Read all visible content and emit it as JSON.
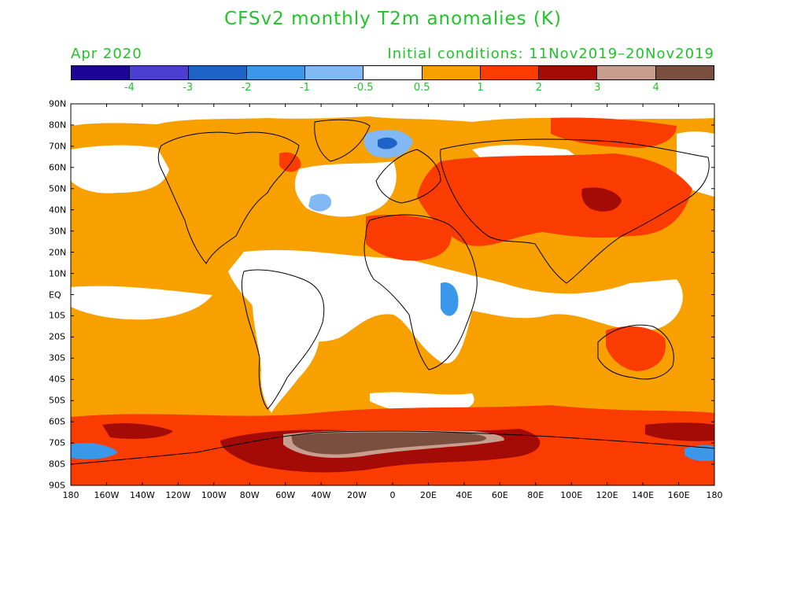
{
  "title": "CFSv2 monthly T2m anomalies (K)",
  "month": "Apr 2020",
  "initial_conditions": "Initial conditions: 11Nov2019–20Nov2019",
  "text_color": "#22c32a",
  "colorbar": {
    "colors": [
      "#1d0597",
      "#4b3ed0",
      "#1f63c9",
      "#3b97ea",
      "#82b8f3",
      "#ffffff",
      "#f7a000",
      "#fb3c00",
      "#a50b06",
      "#c89e8e",
      "#7a4f40"
    ],
    "labels": [
      "-4",
      "-3",
      "-2",
      "-1",
      "-0.5",
      "0.5",
      "1",
      "2",
      "3",
      "4"
    ]
  },
  "lat_ticks": [
    "90N",
    "80N",
    "70N",
    "60N",
    "50N",
    "40N",
    "30N",
    "20N",
    "10N",
    "EQ",
    "10S",
    "20S",
    "30S",
    "40S",
    "50S",
    "60S",
    "70S",
    "80S",
    "90S"
  ],
  "lon_ticks": [
    "180",
    "160W",
    "140W",
    "120W",
    "100W",
    "80W",
    "60W",
    "40W",
    "20W",
    "0",
    "20E",
    "40E",
    "60E",
    "80E",
    "100E",
    "120E",
    "140E",
    "160E",
    "180"
  ],
  "map": {
    "colors": {
      "ocean_orange": "#f7a000",
      "red": "#fb3c00",
      "dark_red": "#a50b06",
      "pink_brown": "#c89e8e",
      "brown": "#7a4f40",
      "light_blue": "#82b8f3",
      "mid_blue": "#3b97ea",
      "blue": "#1f63c9",
      "coast": "#000000"
    }
  }
}
